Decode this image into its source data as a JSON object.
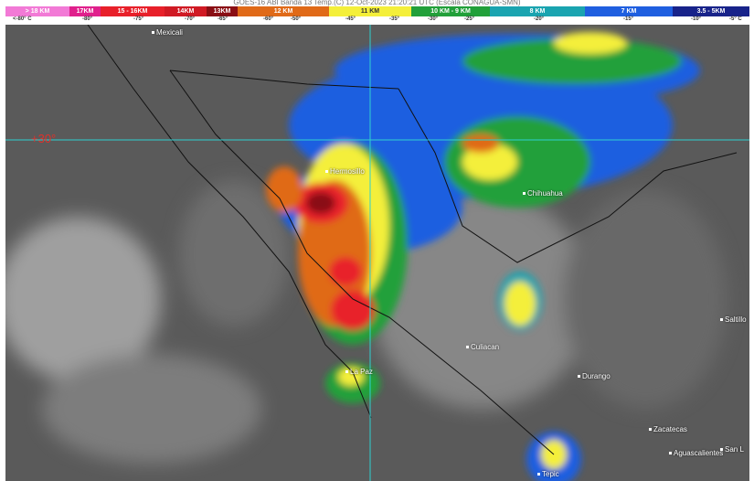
{
  "header": {
    "title": "GOES-16 ABI Banda 13 Temp.(C) 12-Oct-2023 21:20:21 UTC (Escala CONAGUA-SMN)"
  },
  "legend": {
    "segments": [
      {
        "label": "> 18 KM",
        "color": "#f27ad6"
      },
      {
        "label": "17KM",
        "color": "#e0208c"
      },
      {
        "label": "15 - 16KM",
        "color": "#e8202a"
      },
      {
        "label": "14KM",
        "color": "#d01a24"
      },
      {
        "label": "13KM",
        "color": "#8a0e14"
      },
      {
        "label": "12 KM",
        "color": "#e06a18"
      },
      {
        "label": "11 KM",
        "color": "#f4ef3a"
      },
      {
        "label": "10 KM - 9 KM",
        "color": "#22a03a"
      },
      {
        "label": "8 KM",
        "color": "#1aa4b0"
      },
      {
        "label": "7 KM",
        "color": "#1f5fe0"
      },
      {
        "label": "3.5 - 5KM",
        "color": "#18238a"
      }
    ],
    "temps": [
      "<-80° C",
      "-80°",
      "-75°",
      "-70°",
      "-65°",
      "-60°",
      "-50°",
      "-45°",
      "-35°",
      "-30°",
      "-25°",
      "-20°",
      "-15°",
      "-10°",
      "-5° C"
    ]
  },
  "map": {
    "latitude_label": "+30°",
    "grid_color": "#2fd0d0",
    "cities": [
      "Mexicali",
      "Hermosillo",
      "Chihuahua",
      "Culiacan",
      "Durango",
      "La Paz",
      "Zacatecas",
      "Aguascalientes",
      "Tepic",
      "Saltillo",
      "San L"
    ]
  }
}
